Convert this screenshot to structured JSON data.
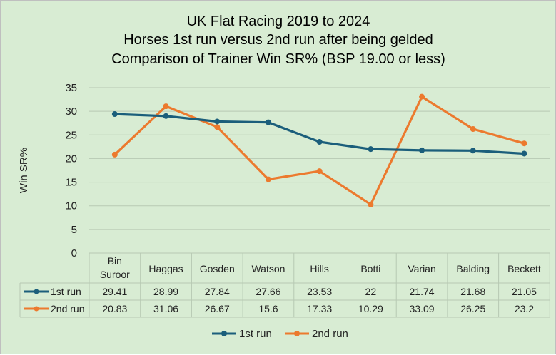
{
  "chart_data": {
    "type": "line",
    "title_lines": [
      "UK Flat Racing 2019 to 2024",
      "Horses 1st run versus 2nd run after being gelded",
      "Comparison of Trainer Win SR% (BSP 19.00 or less)"
    ],
    "ylabel": "Win SR%",
    "xlabel": "",
    "ylim": [
      0,
      35
    ],
    "yticks": [
      0,
      5,
      10,
      15,
      20,
      25,
      30,
      35
    ],
    "grid": true,
    "legend_position": "bottom",
    "data_table": true,
    "categories": [
      "Bin Suroor",
      "Haggas",
      "Gosden",
      "Watson",
      "Hills",
      "Botti",
      "Varian",
      "Balding",
      "Beckett"
    ],
    "category_label_lines": [
      [
        "Bin",
        "Suroor"
      ],
      [
        "Haggas"
      ],
      [
        "Gosden"
      ],
      [
        "Watson"
      ],
      [
        "Hills"
      ],
      [
        "Botti"
      ],
      [
        "Varian"
      ],
      [
        "Balding"
      ],
      [
        "Beckett"
      ]
    ],
    "series": [
      {
        "name": "1st run",
        "color": "#1b5e7b",
        "values": [
          29.41,
          28.99,
          27.84,
          27.66,
          23.53,
          22,
          21.74,
          21.68,
          21.05
        ]
      },
      {
        "name": "2nd run",
        "color": "#ec7a2e",
        "values": [
          20.83,
          31.06,
          26.67,
          15.6,
          17.33,
          10.29,
          33.09,
          26.25,
          23.2
        ]
      }
    ]
  }
}
